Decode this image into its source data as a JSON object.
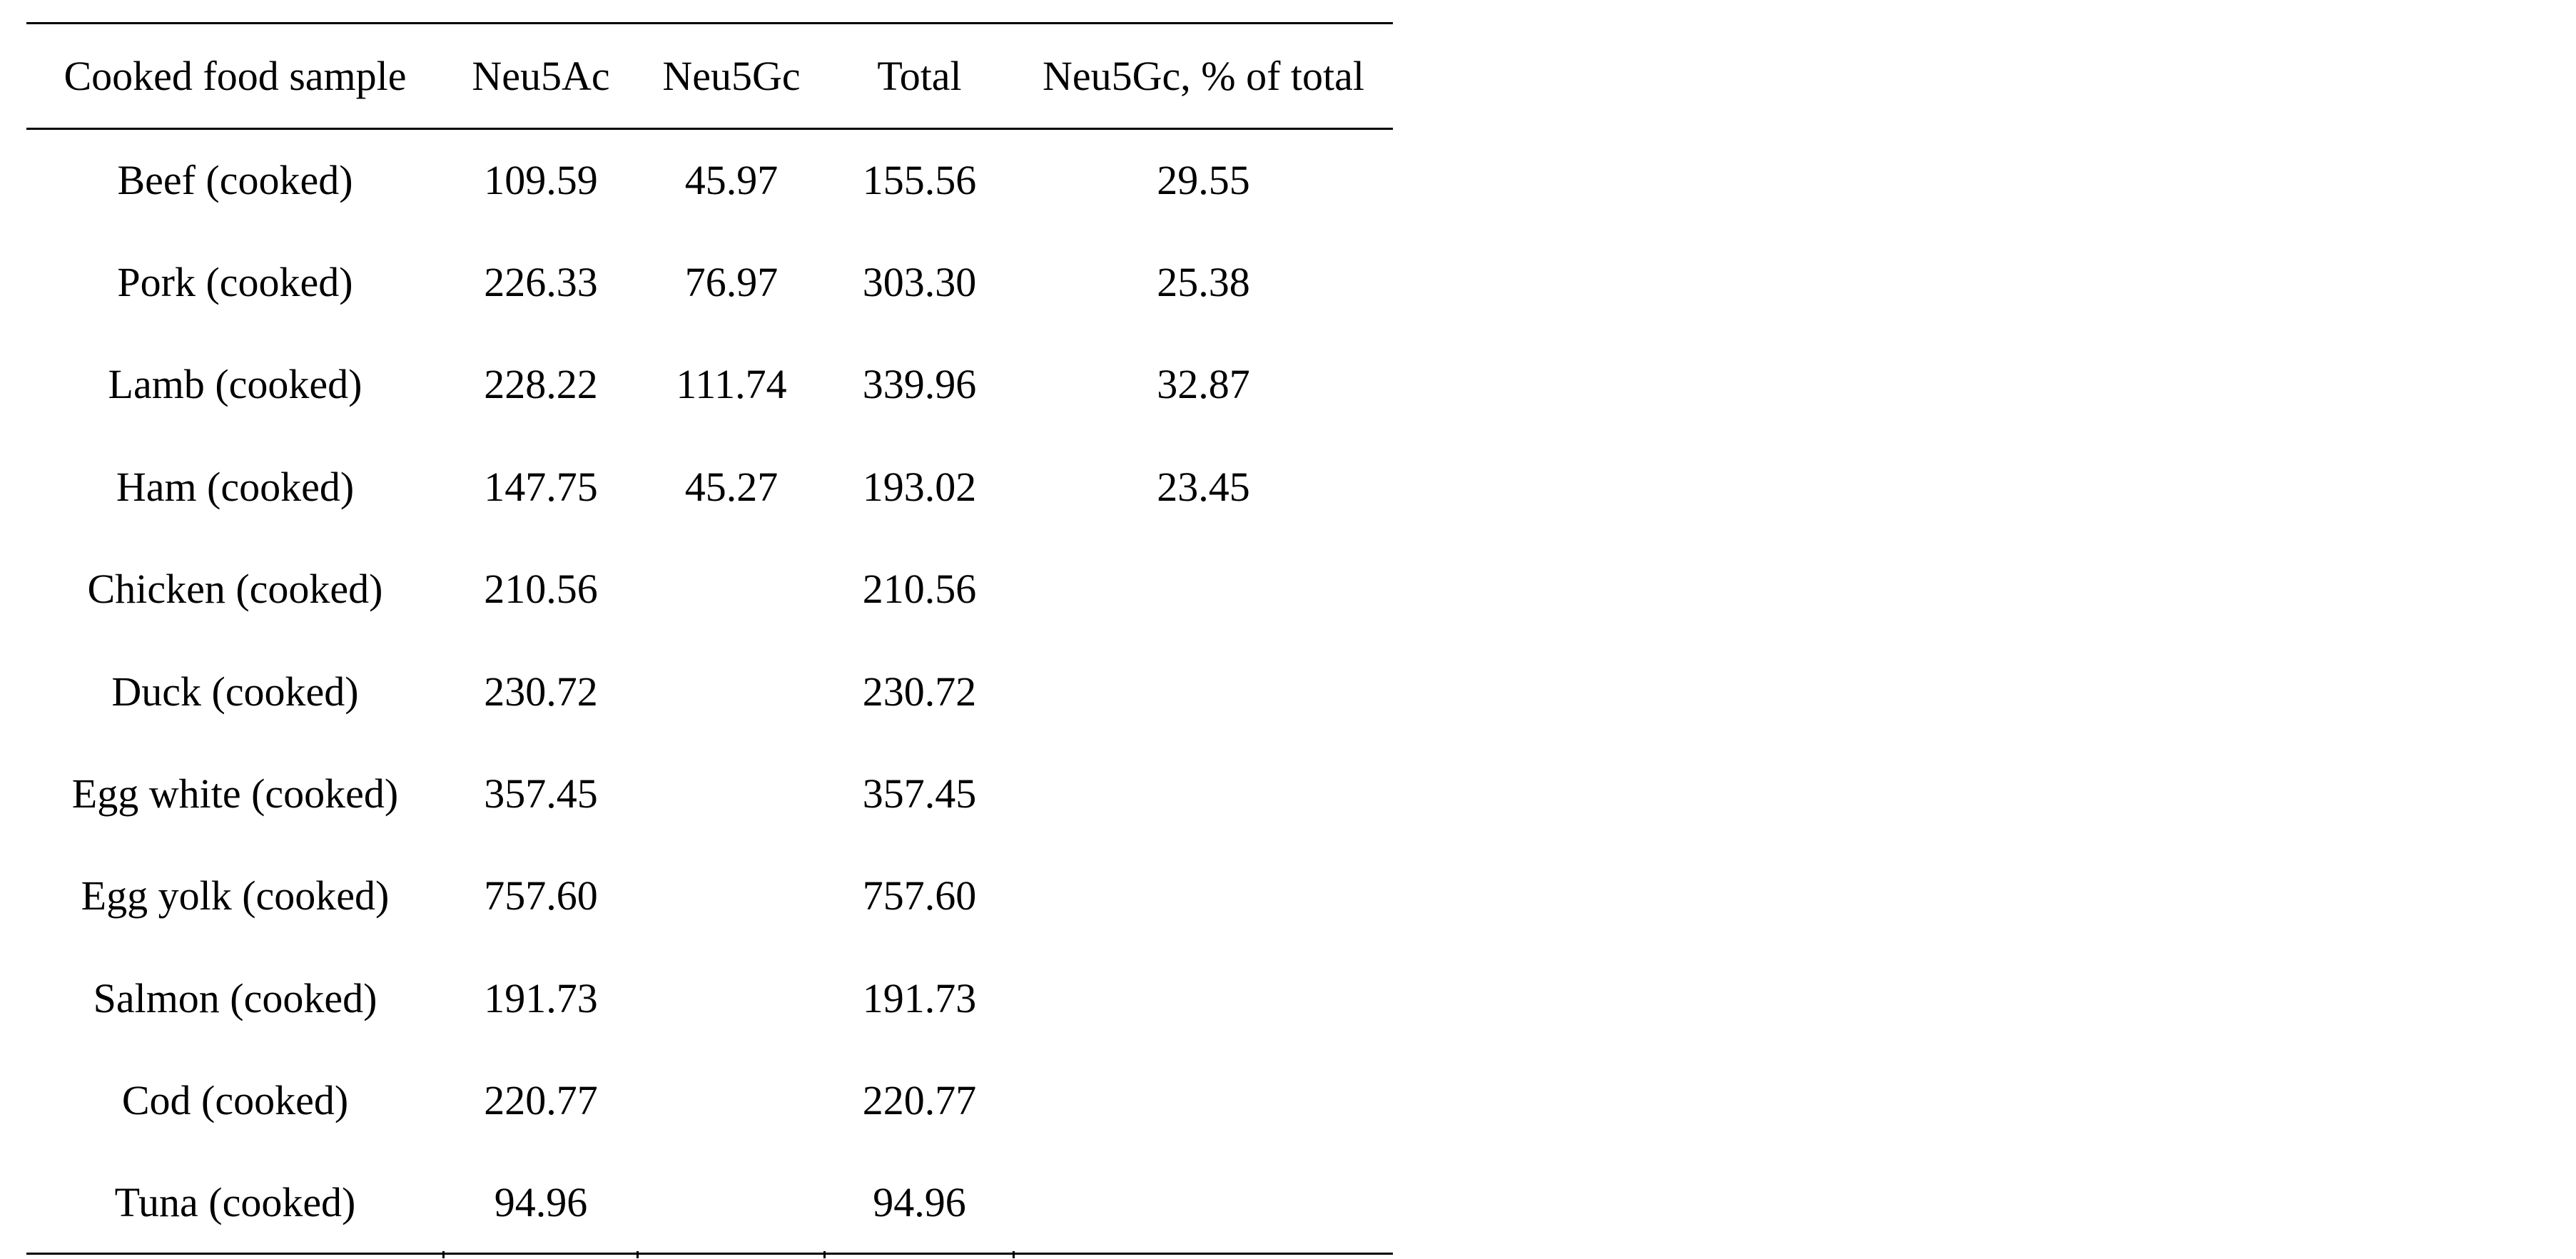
{
  "table": {
    "headers": [
      "Cooked food sample",
      "Neu5Ac",
      "Neu5Gc",
      "Total",
      "Neu5Gc, % of total"
    ],
    "rows": [
      [
        "Beef (cooked)",
        "109.59",
        "45.97",
        "155.56",
        "29.55"
      ],
      [
        "Pork (cooked)",
        "226.33",
        "76.97",
        "303.30",
        "25.38"
      ],
      [
        "Lamb (cooked)",
        "228.22",
        "111.74",
        "339.96",
        "32.87"
      ],
      [
        "Ham (cooked)",
        "147.75",
        "45.27",
        "193.02",
        "23.45"
      ],
      [
        "Chicken (cooked)",
        "210.56",
        "",
        "210.56",
        ""
      ],
      [
        "Duck (cooked)",
        "230.72",
        "",
        "230.72",
        ""
      ],
      [
        "Egg white (cooked)",
        "357.45",
        "",
        "357.45",
        ""
      ],
      [
        "Egg yolk (cooked)",
        "757.60",
        "",
        "757.60",
        ""
      ],
      [
        "Salmon (cooked)",
        "191.73",
        "",
        "191.73",
        ""
      ],
      [
        "Cod (cooked)",
        "220.77",
        "",
        "220.77",
        ""
      ],
      [
        "Tuna (cooked)",
        "94.96",
        "",
        "94.96",
        ""
      ]
    ]
  }
}
